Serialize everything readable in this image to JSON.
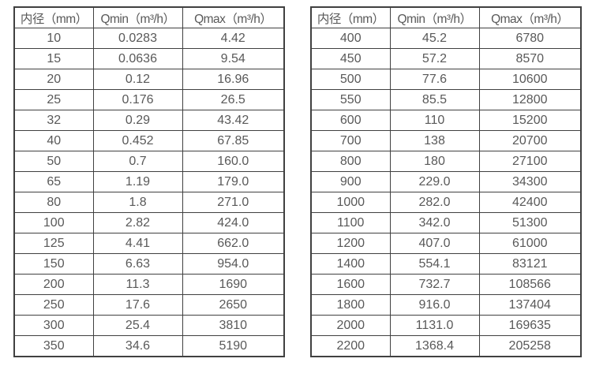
{
  "colors": {
    "background": "#ffffff",
    "border": "#404040",
    "text": "#595959"
  },
  "tables": {
    "left": {
      "name": "flow-table-small-diameters",
      "headers": [
        "内径（mm）",
        "Qmin（m³/h）",
        "Qmax（m³/h）"
      ],
      "rows": [
        [
          "10",
          "0.0283",
          "4.42"
        ],
        [
          "15",
          "0.0636",
          "9.54"
        ],
        [
          "20",
          "0.12",
          "16.96"
        ],
        [
          "25",
          "0.176",
          "26.5"
        ],
        [
          "32",
          "0.29",
          "43.42"
        ],
        [
          "40",
          "0.452",
          "67.85"
        ],
        [
          "50",
          "0.7",
          "160.0"
        ],
        [
          "65",
          "1.19",
          "179.0"
        ],
        [
          "80",
          "1.8",
          "271.0"
        ],
        [
          "100",
          "2.82",
          "424.0"
        ],
        [
          "125",
          "4.41",
          "662.0"
        ],
        [
          "150",
          "6.63",
          "954.0"
        ],
        [
          "200",
          "11.3",
          "1690"
        ],
        [
          "250",
          "17.6",
          "2650"
        ],
        [
          "300",
          "25.4",
          "3810"
        ],
        [
          "350",
          "34.6",
          "5190"
        ]
      ]
    },
    "right": {
      "name": "flow-table-large-diameters",
      "headers": [
        "内径（mm）",
        "Qmin（m³/h）",
        "Qmax（m³/h）"
      ],
      "rows": [
        [
          "400",
          "45.2",
          "6780"
        ],
        [
          "450",
          "57.2",
          "8570"
        ],
        [
          "500",
          "77.6",
          "10600"
        ],
        [
          "550",
          "85.5",
          "12800"
        ],
        [
          "600",
          "110",
          "15200"
        ],
        [
          "700",
          "138",
          "20700"
        ],
        [
          "800",
          "180",
          "27100"
        ],
        [
          "900",
          "229.0",
          "34300"
        ],
        [
          "1000",
          "282.0",
          "42400"
        ],
        [
          "1100",
          "342.0",
          "51300"
        ],
        [
          "1200",
          "407.0",
          "61000"
        ],
        [
          "1400",
          "554.1",
          "83121"
        ],
        [
          "1600",
          "732.7",
          "108566"
        ],
        [
          "1800",
          "916.0",
          "137404"
        ],
        [
          "2000",
          "1131.0",
          "169635"
        ],
        [
          "2200",
          "1368.4",
          "205258"
        ]
      ]
    }
  }
}
